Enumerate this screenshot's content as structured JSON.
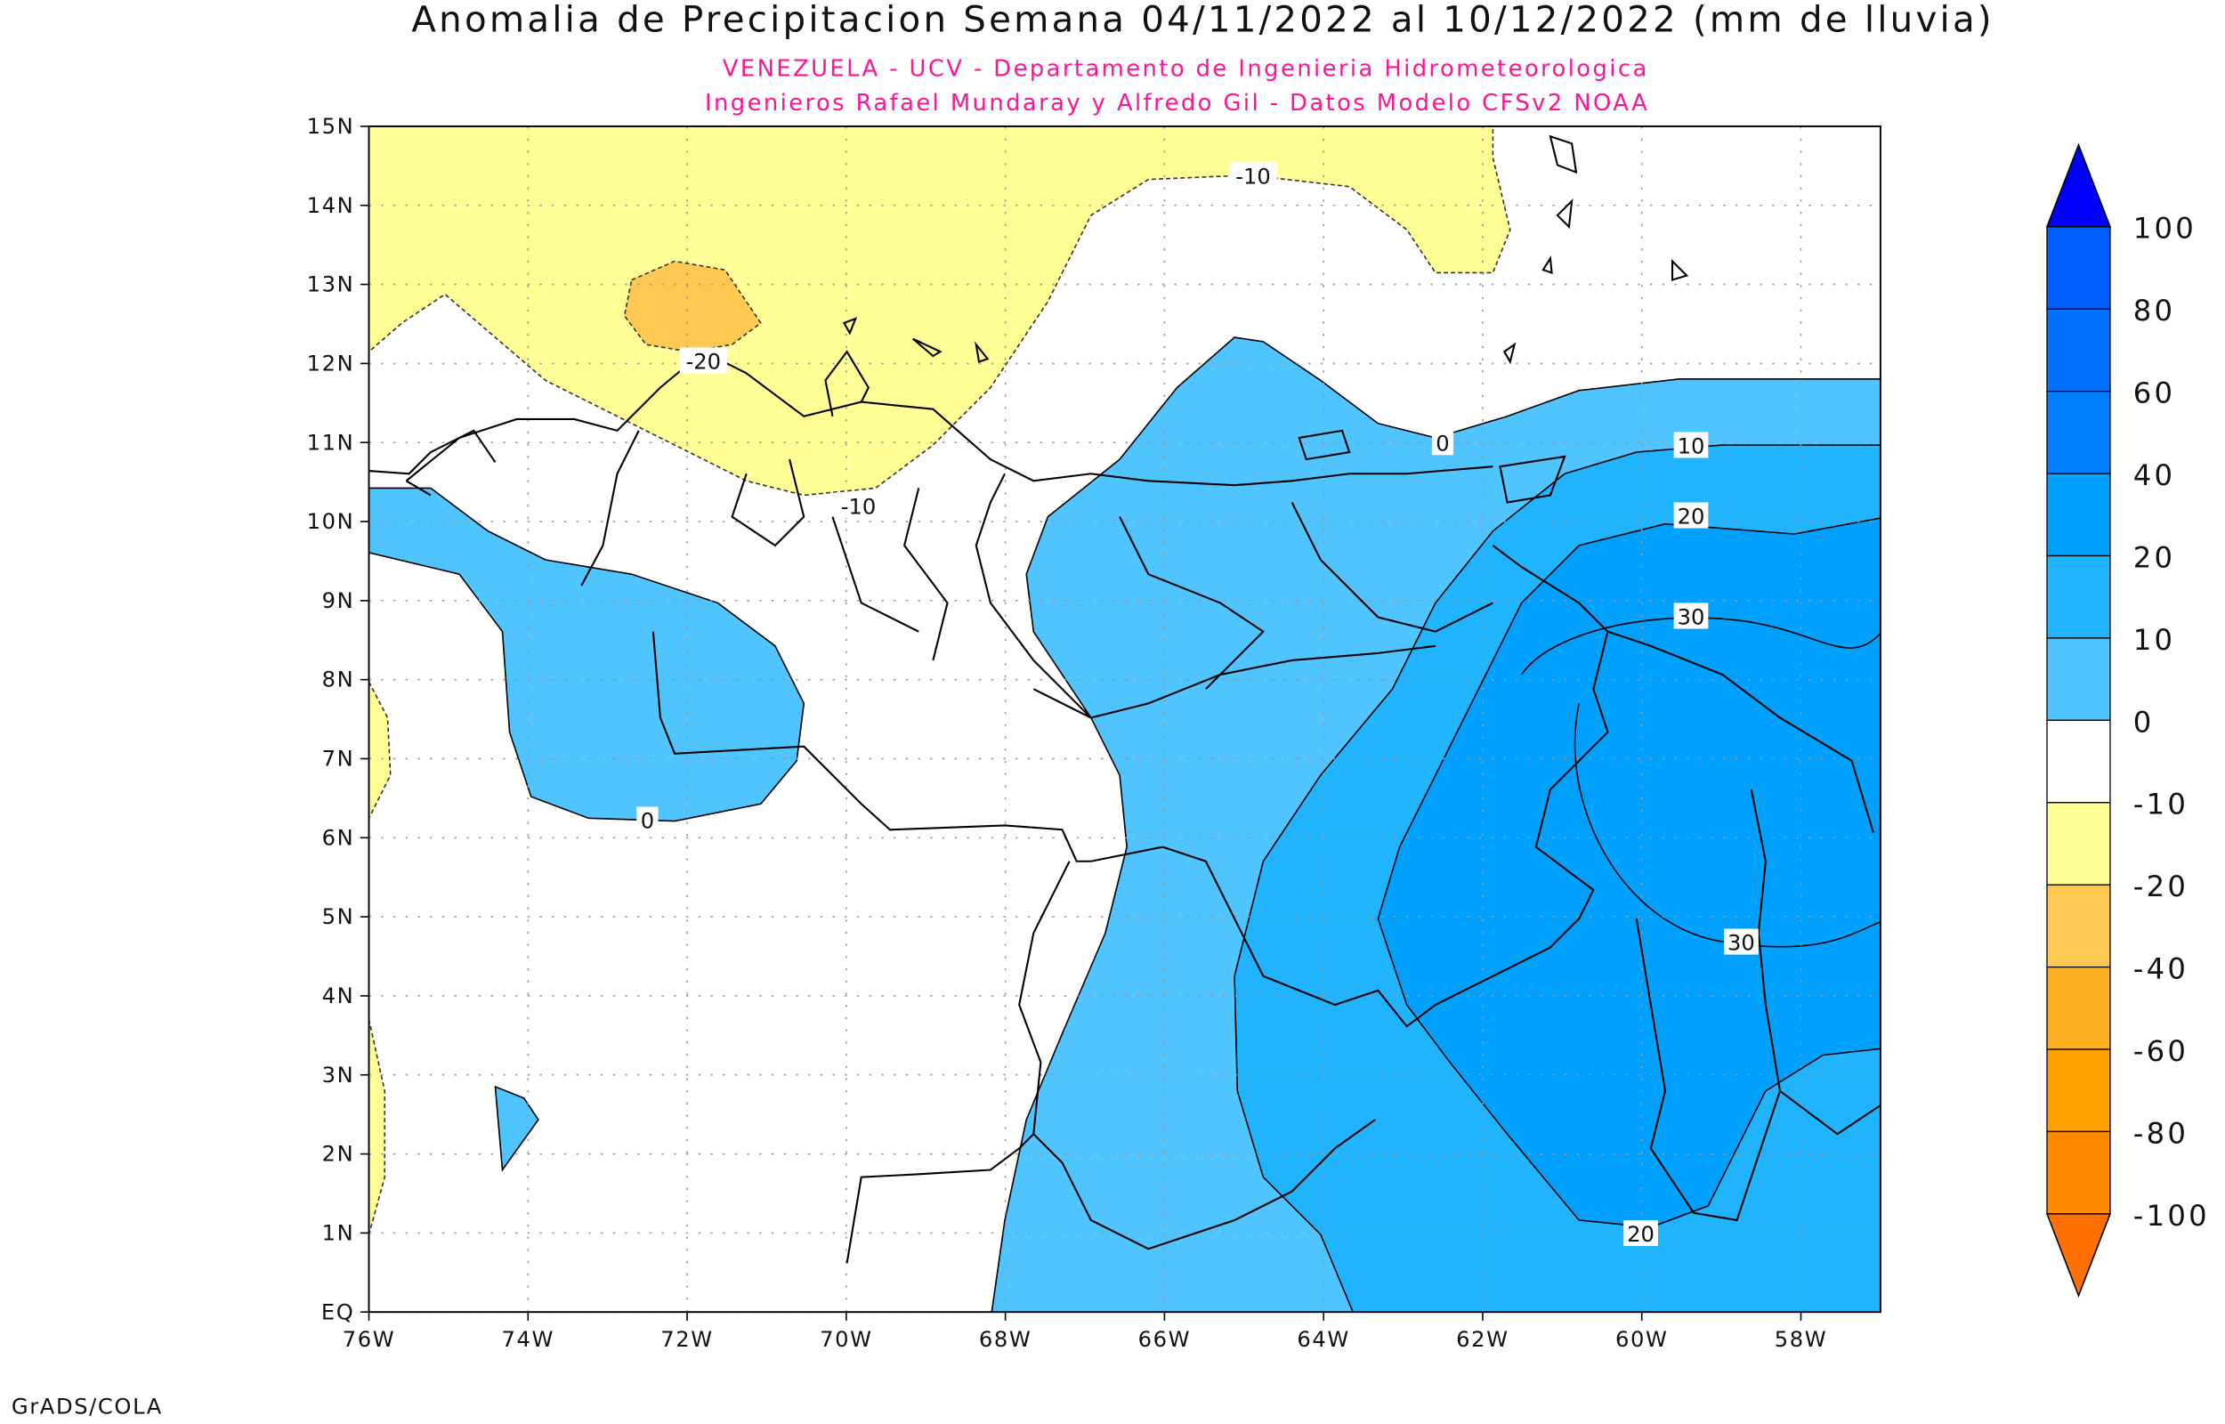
{
  "chart_data": {
    "type": "heatmap",
    "subtype": "filled-contour-map",
    "title": "Anomalia de Precipitacion Semana 04/11/2022 al 10/12/2022 (mm de lluvia)",
    "subtitle_lines": [
      "VENEZUELA - UCV - Departamento de Ingenieria Hidrometeorologica",
      "Ingenieros Rafael Mundaray y Alfredo Gil - Datos Modelo CFSv2 NOAA"
    ],
    "subtitle_color": "#ff1493",
    "x_range_deg_lon": [
      -76,
      -57
    ],
    "y_range_deg_lat": [
      0,
      15
    ],
    "x_ticks": [
      "76W",
      "74W",
      "72W",
      "70W",
      "68W",
      "66W",
      "64W",
      "62W",
      "60W",
      "58W"
    ],
    "y_ticks": [
      "EQ",
      "1N",
      "2N",
      "3N",
      "4N",
      "5N",
      "6N",
      "7N",
      "8N",
      "9N",
      "10N",
      "11N",
      "12N",
      "13N",
      "14N",
      "15N"
    ],
    "grid": true,
    "contour_labels": [
      "-10",
      "-20",
      "-10",
      "0",
      "0",
      "10",
      "20",
      "30",
      "30",
      "20"
    ],
    "colorbar": {
      "placement": "right",
      "labels": [
        "100",
        "80",
        "60",
        "40",
        "20",
        "10",
        "0",
        "-10",
        "-20",
        "-40",
        "-60",
        "-80",
        "-100"
      ],
      "colors_top_to_bottom": [
        "#0000ff",
        "#0060ff",
        "#0070ff",
        "#0080ff",
        "#00a0ff",
        "#20b4ff",
        "#50c4ff",
        "#ffffff",
        "#ffff96",
        "#ffc850",
        "#ffb020",
        "#ffa000",
        "#ff8a00",
        "#ff7000"
      ]
    },
    "footer": "GrADS/COLA"
  }
}
